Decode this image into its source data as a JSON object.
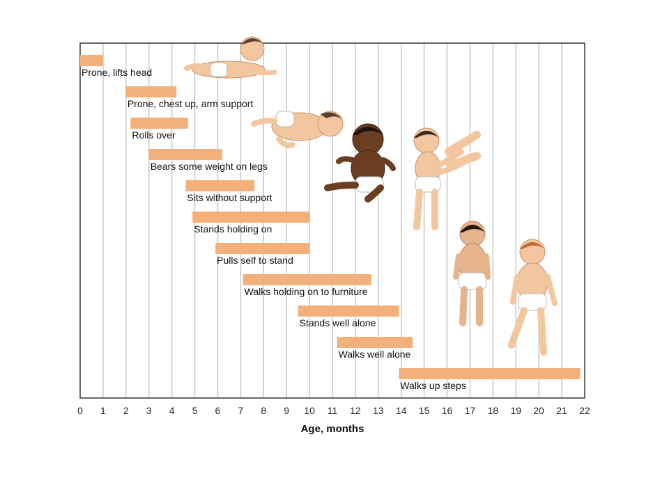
{
  "chart_data": {
    "type": "bar",
    "orientation": "horizontal-range",
    "xlabel": "Age, months",
    "xlim": [
      0,
      22
    ],
    "x_ticks": [
      "0",
      "1",
      "2",
      "3",
      "4",
      "5",
      "6",
      "7",
      "8",
      "9",
      "10",
      "11",
      "12",
      "13",
      "14",
      "15",
      "16",
      "17",
      "18",
      "19",
      "20",
      "21",
      "22"
    ],
    "grid": true,
    "series": [
      {
        "label": "Prone, lifts head",
        "start": 0,
        "end": 1
      },
      {
        "label": "Prone, chest up, arm support",
        "start": 2,
        "end": 4.2
      },
      {
        "label": "Rolls over",
        "start": 2.2,
        "end": 4.7
      },
      {
        "label": "Bears some weight on legs",
        "start": 3,
        "end": 6.2
      },
      {
        "label": "Sits without support",
        "start": 4.6,
        "end": 7.6
      },
      {
        "label": "Stands holding on",
        "start": 4.9,
        "end": 10
      },
      {
        "label": "Pulls self to stand",
        "start": 5.9,
        "end": 10
      },
      {
        "label": "Walks holding on to furniture",
        "start": 7.1,
        "end": 12.7
      },
      {
        "label": "Stands well alone",
        "start": 9.5,
        "end": 13.9
      },
      {
        "label": "Walks well alone",
        "start": 11.2,
        "end": 14.5
      },
      {
        "label": "Walks up steps",
        "start": 13.9,
        "end": 21.8
      }
    ],
    "colors": {
      "bar": "#f4b07a",
      "grid": "#c8c8c8",
      "frame": "#333333",
      "skin": "#f2c7a0",
      "skin_dark": "#6b3e22",
      "diaper": "#ffffff",
      "hair": "#3a2a22"
    },
    "illustration_icons": [
      "baby-prone-icon",
      "baby-rolling-icon",
      "baby-sitting-icon",
      "baby-assisted-standing-icon",
      "toddler-standing-icon",
      "toddler-walking-icon"
    ]
  }
}
